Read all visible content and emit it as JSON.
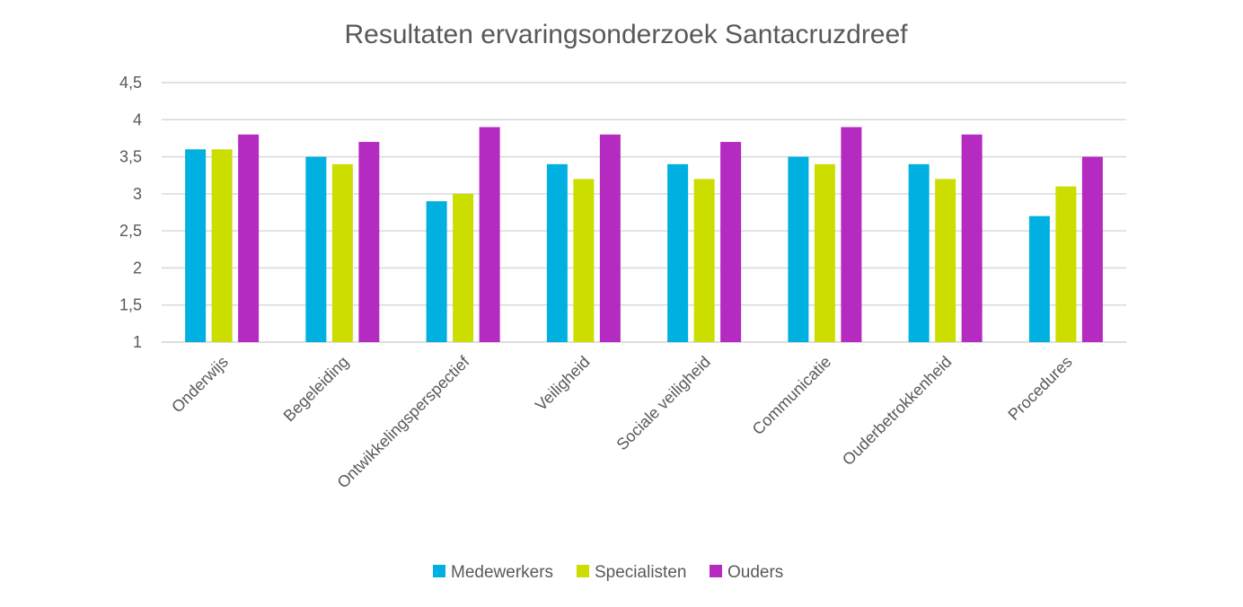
{
  "chart_data": {
    "type": "bar",
    "title": "Resultaten ervaringsonderzoek Santacruzdreef",
    "xlabel": "",
    "ylabel": "",
    "ylim": [
      1,
      4.5
    ],
    "yticks": [
      "1",
      "1,5",
      "2",
      "2,5",
      "3",
      "3,5",
      "4",
      "4,5"
    ],
    "ytick_values": [
      1,
      1.5,
      2,
      2.5,
      3,
      3.5,
      4,
      4.5
    ],
    "grid": true,
    "legend_position": "bottom",
    "categories": [
      "Onderwijs",
      "Begeleiding",
      "Ontwikkelingsperspectief",
      "Veiligheid",
      "Sociale veiligheid",
      "Communicatie",
      "Ouderbetrokkenheid",
      "Procedures"
    ],
    "series": [
      {
        "name": "Medewerkers",
        "color": "#00B0E0",
        "values": [
          3.6,
          3.5,
          2.9,
          3.4,
          3.4,
          3.5,
          3.4,
          2.7
        ]
      },
      {
        "name": "Specialisten",
        "color": "#CCDD00",
        "values": [
          3.6,
          3.4,
          3.0,
          3.2,
          3.2,
          3.4,
          3.2,
          3.1
        ]
      },
      {
        "name": "Ouders",
        "color": "#B52AC0",
        "values": [
          3.8,
          3.7,
          3.9,
          3.8,
          3.7,
          3.9,
          3.8,
          3.5
        ]
      }
    ]
  }
}
